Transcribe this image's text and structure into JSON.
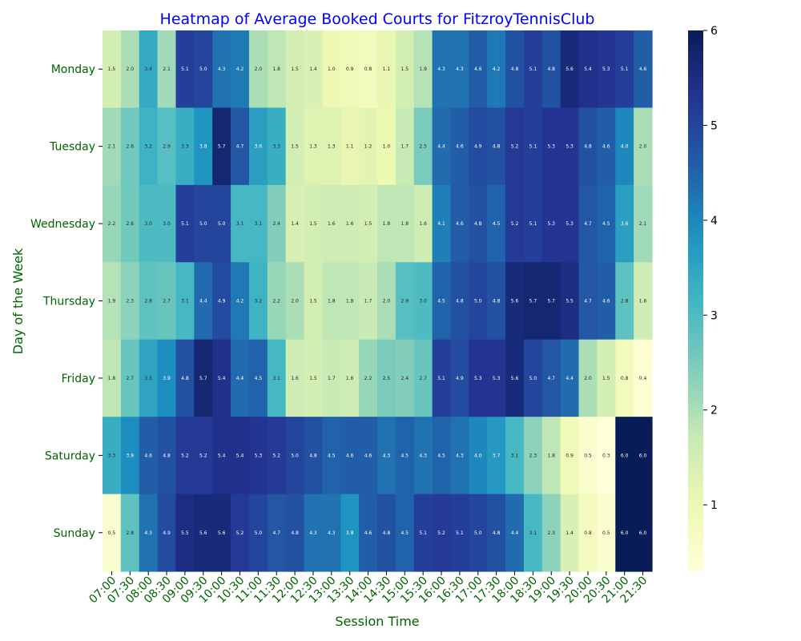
{
  "chart_data": {
    "type": "heatmap",
    "title": "Heatmap of Average Booked Courts for FitzroyTennisClub",
    "xlabel": "Session Time",
    "ylabel": "Day of the Week",
    "x": [
      "07:00",
      "07:30",
      "08:00",
      "08:30",
      "09:00",
      "09:30",
      "10:00",
      "10:30",
      "11:00",
      "11:30",
      "12:00",
      "12:30",
      "13:00",
      "13:30",
      "14:00",
      "14:30",
      "15:00",
      "15:30",
      "16:00",
      "16:30",
      "17:00",
      "17:30",
      "18:00",
      "18:30",
      "19:00",
      "19:30",
      "20:00",
      "20:30",
      "21:00",
      "21:30"
    ],
    "y": [
      "Monday",
      "Tuesday",
      "Wednesday",
      "Thursday",
      "Friday",
      "Saturday",
      "Sunday"
    ],
    "values": [
      [
        1.5,
        2.0,
        3.4,
        2.1,
        5.1,
        5.0,
        4.3,
        4.2,
        2.0,
        1.8,
        1.5,
        1.4,
        1.0,
        0.9,
        0.8,
        1.1,
        1.5,
        1.9,
        4.3,
        4.3,
        4.6,
        4.2,
        4.8,
        5.1,
        4.8,
        5.6,
        5.4,
        5.3,
        5.1,
        4.6
      ],
      [
        2.1,
        2.6,
        3.2,
        2.9,
        3.3,
        3.8,
        5.7,
        4.7,
        3.6,
        3.3,
        1.5,
        1.3,
        1.3,
        1.1,
        1.2,
        1.0,
        1.7,
        2.5,
        4.4,
        4.6,
        4.9,
        4.8,
        5.2,
        5.1,
        5.3,
        5.3,
        4.8,
        4.6,
        4.0,
        2.0
      ],
      [
        2.2,
        2.6,
        3.0,
        3.0,
        5.1,
        5.0,
        5.0,
        3.1,
        3.1,
        2.4,
        1.4,
        1.5,
        1.6,
        1.6,
        1.5,
        1.8,
        1.8,
        1.6,
        4.1,
        4.6,
        4.8,
        4.5,
        5.2,
        5.1,
        5.3,
        5.3,
        4.7,
        4.5,
        3.6,
        2.1
      ],
      [
        1.9,
        2.3,
        2.8,
        2.7,
        3.1,
        4.4,
        4.9,
        4.2,
        3.2,
        2.2,
        2.0,
        1.5,
        1.8,
        1.8,
        1.7,
        2.0,
        2.9,
        3.0,
        4.5,
        4.8,
        5.0,
        4.8,
        5.6,
        5.7,
        5.7,
        5.5,
        4.7,
        4.6,
        2.8,
        1.6
      ],
      [
        1.8,
        2.7,
        3.5,
        3.9,
        4.8,
        5.7,
        5.4,
        4.4,
        4.5,
        3.1,
        1.6,
        1.5,
        1.7,
        1.6,
        2.2,
        2.5,
        2.4,
        2.7,
        5.1,
        4.9,
        5.3,
        5.3,
        5.6,
        5.0,
        4.7,
        4.4,
        2.0,
        1.5,
        0.8,
        0.4
      ],
      [
        3.3,
        3.9,
        4.6,
        4.8,
        5.2,
        5.2,
        5.4,
        5.4,
        5.3,
        5.2,
        5.0,
        4.8,
        4.5,
        4.6,
        4.6,
        4.3,
        4.5,
        4.3,
        4.5,
        4.3,
        4.0,
        3.7,
        3.1,
        2.3,
        1.8,
        0.9,
        0.5,
        0.3,
        6.0,
        6.0
      ],
      [
        0.5,
        2.8,
        4.3,
        4.9,
        5.5,
        5.6,
        5.6,
        5.2,
        5.0,
        4.7,
        4.8,
        4.3,
        4.3,
        3.8,
        4.6,
        4.8,
        4.5,
        5.1,
        5.2,
        5.1,
        5.0,
        4.8,
        4.4,
        3.1,
        2.3,
        1.4,
        0.8,
        0.5,
        6.0,
        6.0
      ]
    ],
    "colorbar": {
      "min": 0.3,
      "max": 6.0,
      "ticks": [
        1,
        2,
        3,
        4,
        5,
        6
      ],
      "colormap": "YlGnBu"
    },
    "grid": false
  }
}
